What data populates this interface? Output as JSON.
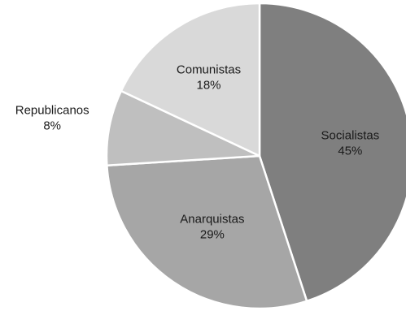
{
  "chart_data": {
    "type": "pie",
    "title": "",
    "start_angle_deg": 0,
    "direction": "clockwise",
    "slices": [
      {
        "name": "Socialistas",
        "value": 45,
        "label": "45%",
        "color": "#7f7f7f"
      },
      {
        "name": "Anarquistas",
        "value": 29,
        "label": "29%",
        "color": "#a6a6a6"
      },
      {
        "name": "Republicanos",
        "value": 8,
        "label": "8%",
        "color": "#bfbfbf"
      },
      {
        "name": "Comunistas",
        "value": 18,
        "label": "18%",
        "color": "#d9d9d9"
      }
    ]
  }
}
